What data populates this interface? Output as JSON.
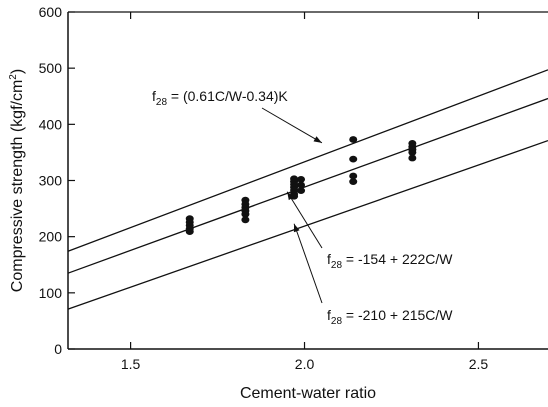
{
  "chart_data": {
    "type": "scatter",
    "title": "",
    "xlabel": "Cement-water ratio",
    "ylabel_main": "Compressive strength (kgf/cm",
    "ylabel_sup": "2",
    "ylabel_end": ")",
    "xlim": [
      1.32,
      2.7
    ],
    "ylim": [
      0,
      600
    ],
    "x_ticks": [
      1.5,
      2.0,
      2.5
    ],
    "x_tick_labels": [
      "1.5",
      "2.0",
      "2.5"
    ],
    "y_ticks": [
      0,
      100,
      200,
      300,
      400,
      500,
      600
    ],
    "y_tick_labels": [
      "0",
      "100",
      "200",
      "300",
      "400",
      "500",
      "600"
    ],
    "grid": false,
    "points": [
      {
        "x": 1.67,
        "y": 232
      },
      {
        "x": 1.67,
        "y": 226
      },
      {
        "x": 1.67,
        "y": 220
      },
      {
        "x": 1.67,
        "y": 214
      },
      {
        "x": 1.67,
        "y": 209
      },
      {
        "x": 1.83,
        "y": 265
      },
      {
        "x": 1.83,
        "y": 258
      },
      {
        "x": 1.83,
        "y": 252
      },
      {
        "x": 1.83,
        "y": 246
      },
      {
        "x": 1.83,
        "y": 240
      },
      {
        "x": 1.83,
        "y": 230
      },
      {
        "x": 1.97,
        "y": 303
      },
      {
        "x": 1.97,
        "y": 298
      },
      {
        "x": 1.97,
        "y": 293
      },
      {
        "x": 1.97,
        "y": 288
      },
      {
        "x": 1.97,
        "y": 283
      },
      {
        "x": 1.97,
        "y": 276
      },
      {
        "x": 1.97,
        "y": 272
      },
      {
        "x": 1.99,
        "y": 302
      },
      {
        "x": 1.99,
        "y": 292
      },
      {
        "x": 1.99,
        "y": 282
      },
      {
        "x": 2.14,
        "y": 373
      },
      {
        "x": 2.14,
        "y": 338
      },
      {
        "x": 2.14,
        "y": 308
      },
      {
        "x": 2.14,
        "y": 298
      },
      {
        "x": 2.31,
        "y": 366
      },
      {
        "x": 2.31,
        "y": 360
      },
      {
        "x": 2.31,
        "y": 355
      },
      {
        "x": 2.31,
        "y": 350
      },
      {
        "x": 2.31,
        "y": 340
      }
    ],
    "lines": [
      {
        "id": "upper",
        "x": [
          1.32,
          2.7
        ],
        "y": [
          174,
          497
        ]
      },
      {
        "id": "middle",
        "x": [
          1.32,
          2.7
        ],
        "y": [
          135,
          446
        ]
      },
      {
        "id": "lower",
        "x": [
          1.32,
          2.7
        ],
        "y": [
          71,
          371
        ]
      }
    ],
    "annotations": [
      {
        "id": "upper",
        "f": "f",
        "sub": "28",
        "rest": " = (0.61C/W-0.34)K",
        "target": [
          2.05,
          367
        ]
      },
      {
        "id": "middle",
        "f": "f",
        "sub": "28",
        "rest": " = -154 + 222C/W",
        "target": [
          1.95,
          280
        ]
      },
      {
        "id": "lower",
        "f": "f",
        "sub": "28",
        "rest": " = -210 + 215C/W",
        "target": [
          1.97,
          223
        ]
      }
    ]
  }
}
